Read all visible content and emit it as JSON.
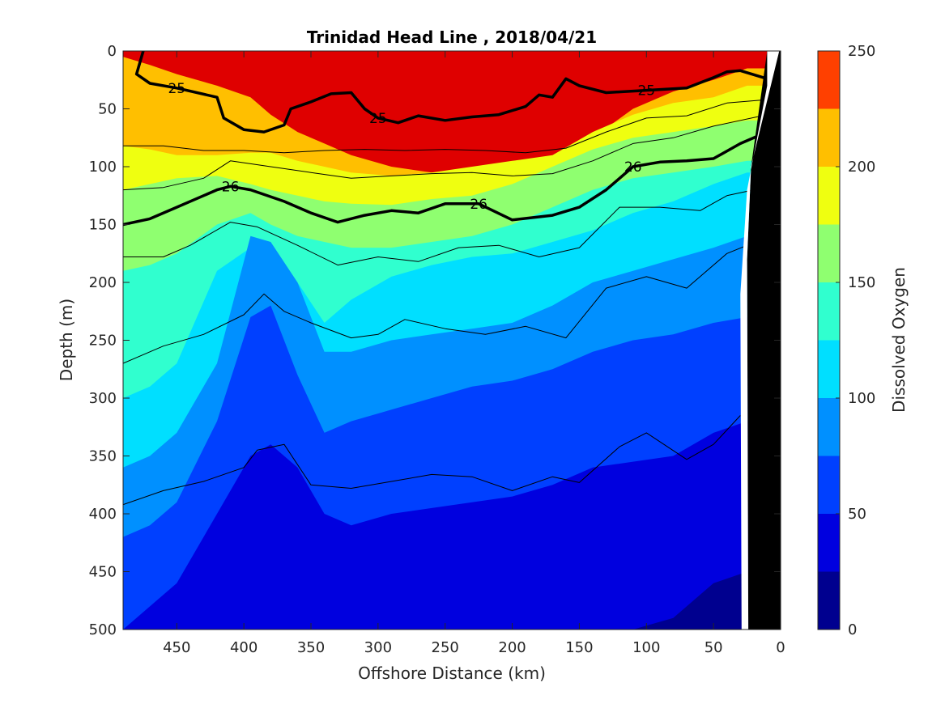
{
  "chart_data": {
    "type": "heatmap",
    "title": "Trinidad Head Line , 2018/04/21",
    "xlabel": "Offshore Distance (km)",
    "ylabel": "Depth (m)",
    "xlim": [
      490,
      0
    ],
    "ylim": [
      0,
      500
    ],
    "x_reversed": true,
    "y_reversed": true,
    "x_ticks": [
      450,
      400,
      350,
      300,
      250,
      200,
      150,
      100,
      50,
      0
    ],
    "y_ticks": [
      0,
      50,
      100,
      150,
      200,
      250,
      300,
      350,
      400,
      450,
      500
    ],
    "colorbar": {
      "label": "Dissolved Oxygen",
      "range": [
        0,
        250
      ],
      "ticks": [
        0,
        50,
        100,
        150,
        200,
        250
      ],
      "levels": [
        0,
        25,
        50,
        75,
        100,
        125,
        150,
        175,
        200,
        225,
        250
      ],
      "colors": [
        "#00008f",
        "#0000df",
        "#0040ff",
        "#0090ff",
        "#00dfff",
        "#30ffcf",
        "#8fff70",
        "#efff10",
        "#ffbf00",
        "#ff4000",
        "#df0000"
      ]
    },
    "oxygen_bands": [
      {
        "level": 225,
        "depth": [
          5,
          12,
          20,
          30,
          40,
          55,
          70,
          80,
          90,
          100,
          105,
          105,
          100,
          92,
          75,
          50,
          35,
          25,
          15
        ]
      },
      {
        "level": 200,
        "depth": [
          82,
          85,
          90,
          90,
          88,
          88,
          95,
          100,
          105,
          108,
          105,
          100,
          95,
          90,
          70,
          55,
          45,
          40,
          30
        ]
      },
      {
        "level": 175,
        "depth": [
          120,
          115,
          110,
          108,
          115,
          120,
          125,
          130,
          132,
          133,
          128,
          125,
          115,
          100,
          85,
          75,
          70,
          65,
          60
        ]
      },
      {
        "level": 150,
        "depth": [
          190,
          185,
          175,
          150,
          140,
          150,
          160,
          165,
          170,
          170,
          165,
          160,
          150,
          135,
          120,
          110,
          105,
          100,
          95
        ]
      },
      {
        "level": 125,
        "depth": [
          300,
          290,
          270,
          190,
          170,
          180,
          200,
          235,
          215,
          195,
          185,
          178,
          175,
          165,
          155,
          140,
          130,
          115,
          105
        ]
      },
      {
        "level": 100,
        "depth": [
          360,
          350,
          330,
          270,
          160,
          165,
          200,
          260,
          260,
          250,
          245,
          240,
          235,
          220,
          200,
          190,
          180,
          170,
          160
        ]
      },
      {
        "level": 75,
        "depth": [
          420,
          410,
          390,
          320,
          230,
          220,
          280,
          330,
          320,
          310,
          300,
          290,
          285,
          275,
          260,
          250,
          245,
          235,
          230
        ]
      },
      {
        "level": 50,
        "depth": [
          500,
          480,
          460,
          400,
          350,
          340,
          360,
          400,
          410,
          400,
          395,
          390,
          385,
          375,
          360,
          355,
          350,
          330,
          320
        ]
      },
      {
        "level": 25,
        "depth": [
          500,
          500,
          500,
          500,
          500,
          500,
          500,
          500,
          500,
          500,
          500,
          500,
          500,
          500,
          500,
          500,
          490,
          460,
          450
        ]
      }
    ],
    "band_x": [
      490,
      470,
      450,
      420,
      395,
      380,
      360,
      340,
      320,
      290,
      260,
      230,
      200,
      170,
      140,
      110,
      80,
      50,
      25
    ],
    "density_contours": [
      {
        "label": "25",
        "bold": true,
        "x": [
          475,
          480,
          470,
          450,
          420,
          415,
          400,
          385,
          370,
          365,
          350,
          335,
          320,
          310,
          300,
          285,
          270,
          250,
          230,
          210,
          190,
          180,
          170,
          160,
          150,
          130,
          100,
          70,
          50,
          40,
          30,
          10
        ],
        "y": [
          0,
          20,
          28,
          32,
          40,
          58,
          68,
          70,
          64,
          50,
          44,
          37,
          36,
          50,
          58,
          62,
          56,
          60,
          57,
          55,
          48,
          38,
          40,
          24,
          30,
          36,
          34,
          32,
          23,
          18,
          17,
          24
        ]
      },
      {
        "label": "26",
        "bold": true,
        "x": [
          490,
          470,
          450,
          420,
          410,
          395,
          370,
          350,
          330,
          310,
          290,
          270,
          250,
          225,
          200,
          170,
          150,
          130,
          110,
          90,
          70,
          50,
          30,
          10
        ],
        "y": [
          150,
          145,
          135,
          120,
          117,
          120,
          130,
          140,
          148,
          142,
          138,
          140,
          132,
          132,
          146,
          142,
          135,
          120,
          100,
          96,
          95,
          93,
          80,
          70
        ]
      },
      {
        "label": "",
        "bold": false,
        "x": [
          490,
          460,
          430,
          400,
          370,
          340,
          310,
          280,
          250,
          220,
          190,
          160,
          130,
          100,
          70,
          40,
          10
        ],
        "y": [
          82,
          82,
          86,
          86,
          88,
          86,
          85,
          86,
          85,
          86,
          88,
          84,
          70,
          58,
          56,
          45,
          42
        ]
      },
      {
        "label": "",
        "bold": false,
        "x": [
          490,
          460,
          430,
          410,
          380,
          350,
          320,
          290,
          260,
          230,
          200,
          170,
          140,
          110,
          80,
          50,
          10
        ],
        "y": [
          120,
          118,
          110,
          95,
          100,
          105,
          110,
          108,
          106,
          105,
          108,
          106,
          95,
          80,
          75,
          65,
          55
        ]
      },
      {
        "label": "",
        "bold": false,
        "x": [
          490,
          460,
          440,
          410,
          390,
          360,
          330,
          300,
          270,
          240,
          210,
          180,
          150,
          120,
          90,
          60,
          40,
          20
        ],
        "y": [
          178,
          178,
          168,
          148,
          152,
          168,
          185,
          178,
          182,
          170,
          168,
          178,
          170,
          135,
          135,
          138,
          125,
          120
        ]
      },
      {
        "label": "",
        "bold": false,
        "x": [
          490,
          460,
          430,
          400,
          385,
          370,
          350,
          320,
          300,
          280,
          250,
          220,
          190,
          160,
          130,
          100,
          70,
          40,
          25
        ],
        "y": [
          270,
          255,
          245,
          228,
          210,
          225,
          235,
          248,
          245,
          232,
          240,
          245,
          238,
          248,
          205,
          195,
          205,
          175,
          168
        ]
      },
      {
        "label": "",
        "bold": false,
        "x": [
          490,
          460,
          430,
          400,
          390,
          370,
          350,
          320,
          290,
          260,
          230,
          200,
          170,
          150,
          120,
          100,
          70,
          50,
          30
        ],
        "y": [
          392,
          380,
          372,
          360,
          345,
          340,
          375,
          378,
          372,
          366,
          368,
          380,
          368,
          373,
          342,
          330,
          353,
          340,
          315
        ]
      }
    ]
  }
}
